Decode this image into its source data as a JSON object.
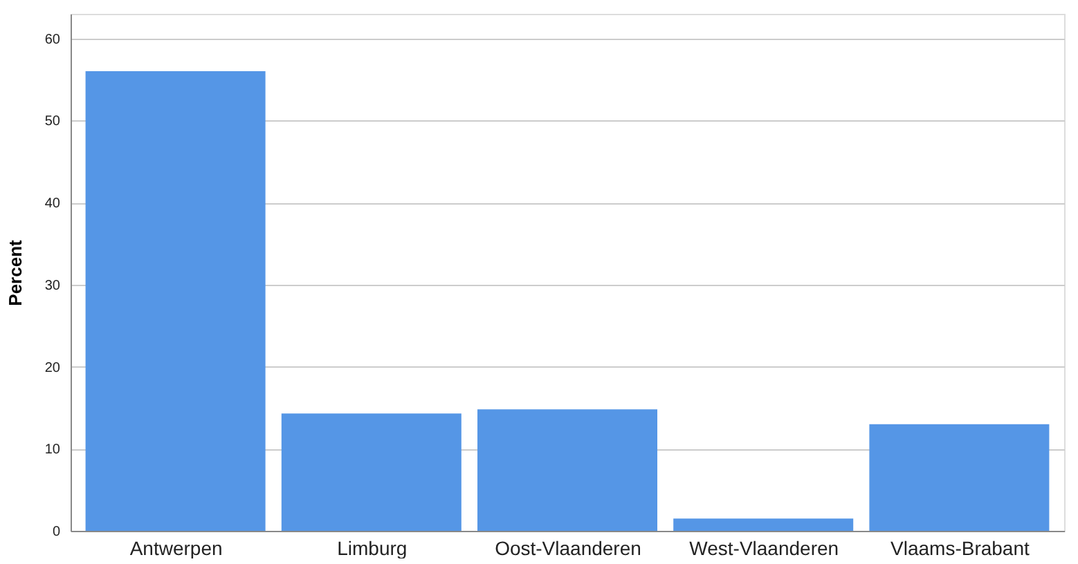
{
  "chart_data": {
    "type": "bar",
    "ylabel": "Percent",
    "categories": [
      "Antwerpen",
      "Limburg",
      "Oost-Vlaanderen",
      "West-Vlaanderen",
      "Vlaams-Brabant"
    ],
    "values": [
      56.0,
      14.3,
      14.8,
      1.5,
      13.0
    ],
    "color": "#5596e6",
    "ylim": [
      0,
      63
    ],
    "yticks": [
      0,
      10,
      20,
      30,
      40,
      50,
      60
    ],
    "grid": "y"
  }
}
